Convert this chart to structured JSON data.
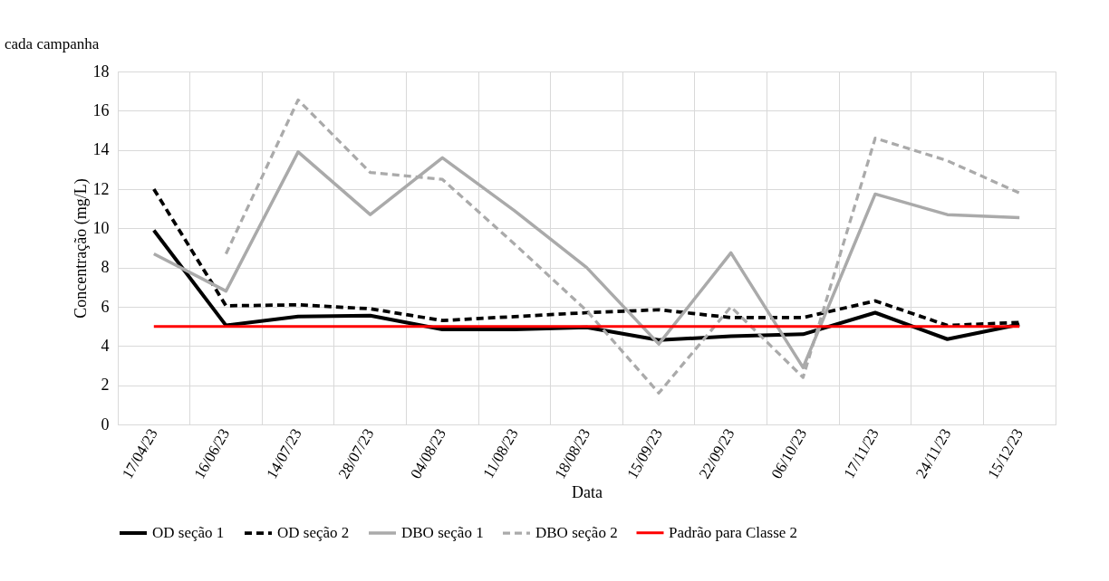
{
  "chart_data": {
    "type": "line",
    "xlabel": "Data",
    "ylabel": "Concentração (mg/L)",
    "annotations": [
      "cada campanha"
    ],
    "categories": [
      "17/04/23",
      "16/06/23",
      "14/07/23",
      "28/07/23",
      "04/08/23",
      "11/08/23",
      "18/08/23",
      "15/09/23",
      "22/09/23",
      "06/10/23",
      "17/11/23",
      "24/11/23",
      "15/12/23"
    ],
    "series": [
      {
        "name": "OD seção 1",
        "color": "#000000",
        "line_style": "solid",
        "values": [
          9.9,
          5.05,
          5.5,
          5.55,
          4.85,
          4.85,
          4.95,
          4.3,
          4.5,
          4.6,
          5.7,
          4.35,
          5.1
        ]
      },
      {
        "name": "OD seção 2",
        "color": "#000000",
        "line_style": "dashed",
        "values": [
          12.0,
          6.05,
          6.1,
          5.9,
          5.3,
          5.5,
          5.7,
          5.85,
          5.45,
          5.45,
          6.3,
          5.05,
          5.2
        ]
      },
      {
        "name": "DBO seção 1",
        "color": "#aaaaaa",
        "line_style": "solid",
        "values": [
          8.7,
          6.8,
          13.9,
          10.7,
          13.6,
          10.9,
          8.0,
          4.1,
          8.75,
          2.9,
          11.75,
          10.7,
          10.55
        ]
      },
      {
        "name": "DBO seção 2",
        "color": "#aaaaaa",
        "line_style": "dashed",
        "values": [
          null,
          8.7,
          16.55,
          12.85,
          12.5,
          9.2,
          5.8,
          1.6,
          6.0,
          2.4,
          14.6,
          13.45,
          11.8
        ]
      },
      {
        "name": "Padrão para Classe 2",
        "color": "#ff0000",
        "line_style": "solid",
        "values": [
          5,
          5,
          5,
          5,
          5,
          5,
          5,
          5,
          5,
          5,
          5,
          5,
          5
        ]
      }
    ],
    "ylim": [
      0,
      18
    ],
    "yticks": [
      0,
      2,
      4,
      6,
      8,
      10,
      12,
      14,
      16,
      18
    ],
    "grid": true,
    "legend": "bottom",
    "marker": "none"
  }
}
